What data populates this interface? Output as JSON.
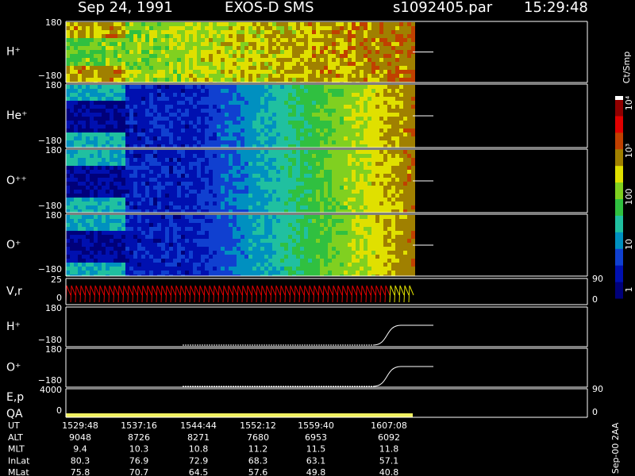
{
  "header": {
    "date": "Sep 24, 1991",
    "instrument": "EXOS-D SMS",
    "file": "s1092405.par",
    "time": "15:29:48"
  },
  "panels": [
    {
      "label": "H⁺",
      "ticks": [
        "180",
        "−180"
      ]
    },
    {
      "label": "He⁺",
      "ticks": [
        "180",
        "−180"
      ]
    },
    {
      "label": "O⁺⁺",
      "ticks": [
        "180",
        "−180"
      ]
    },
    {
      "label": "O⁺",
      "ticks": [
        "180",
        "−180"
      ]
    },
    {
      "label": "V,r",
      "ticks": [
        "25",
        "0"
      ],
      "right_ticks": [
        "90",
        "0"
      ]
    },
    {
      "label": "H⁺",
      "ticks": [
        "180",
        "−180"
      ]
    },
    {
      "label": "O⁺",
      "ticks": [
        "180",
        "−180"
      ]
    },
    {
      "label": "E,p",
      "label2": "QA",
      "ticks": [
        "4000",
        "0"
      ],
      "right_ticks": [
        "90",
        "0"
      ]
    }
  ],
  "colorbar": {
    "title": "Ct/Smp",
    "ticks": [
      "10⁴",
      "10³",
      "100",
      "10",
      "1"
    ]
  },
  "table": {
    "rows": [
      [
        "UT",
        "1529:48",
        "1537:16",
        "1544:44",
        "1552:12",
        "1559:40",
        "1607:08"
      ],
      [
        "ALT",
        "9048",
        "8726",
        "8271",
        "7680",
        "6953",
        "6092"
      ],
      [
        "MLT",
        "9.4",
        "10.3",
        "10.8",
        "11.2",
        "11.5",
        "11.8"
      ],
      [
        "InLat",
        "80.3",
        "76.9",
        "72.9",
        "68.3",
        "63.1",
        "57.1"
      ],
      [
        "MLat",
        "75.8",
        "70.7",
        "64.5",
        "57.6",
        "49.8",
        "40.8"
      ]
    ]
  },
  "footer": "Sep-00 2AA"
}
